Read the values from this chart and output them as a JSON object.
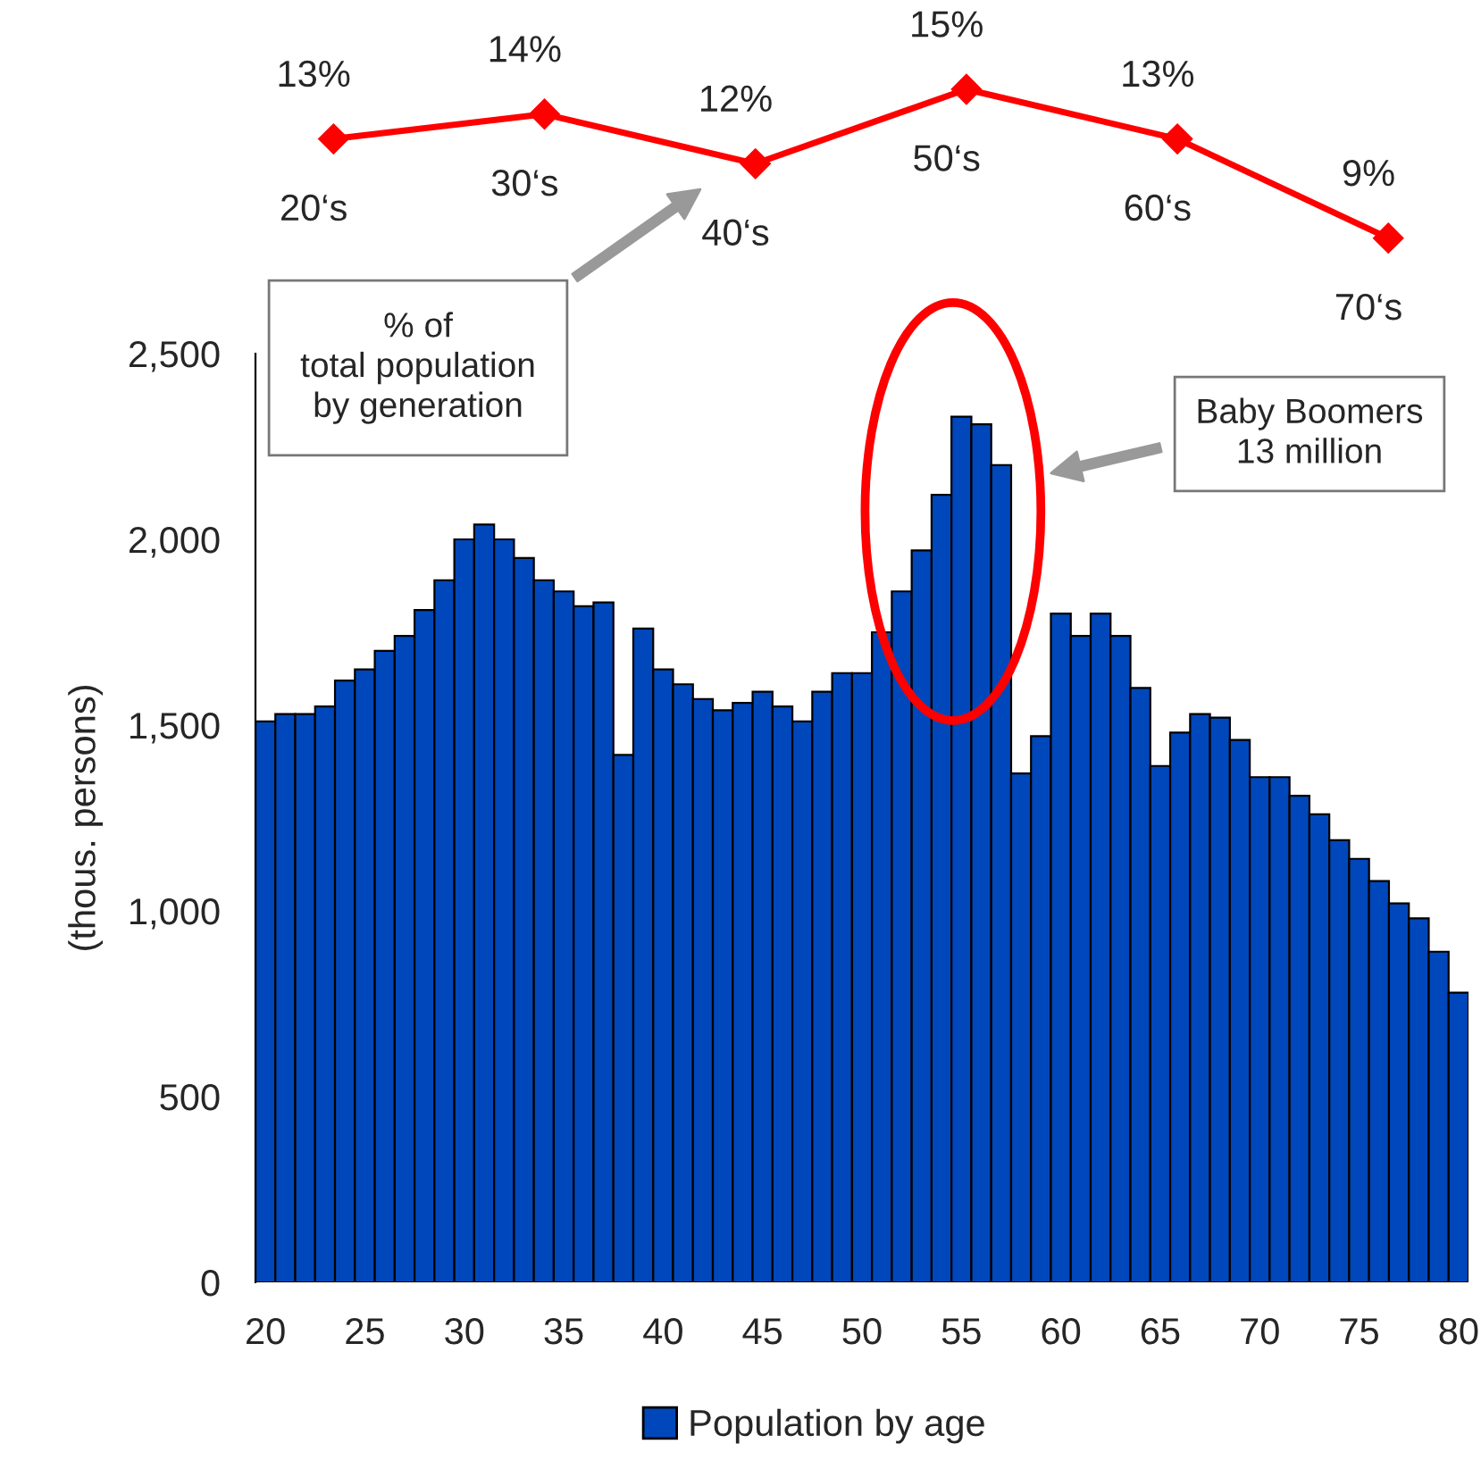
{
  "chart_data": [
    {
      "type": "line",
      "categories": [
        "20‘s",
        "30‘s",
        "40‘s",
        "50‘s",
        "60‘s",
        "70‘s"
      ],
      "series": [
        {
          "color": "#ff0000",
          "values": [
            13,
            14,
            12,
            15,
            13,
            9
          ],
          "value_labels": [
            "13%",
            "14%",
            "12%",
            "15%",
            "13%",
            "9%"
          ]
        }
      ],
      "marker": "diamond",
      "line_style": "solid",
      "tick_labels": false,
      "annotations": [
        "% of\ntotal population\nby generation"
      ]
    },
    {
      "type": "bar",
      "x": [
        20,
        21,
        22,
        23,
        24,
        25,
        26,
        27,
        28,
        29,
        30,
        31,
        32,
        33,
        34,
        35,
        36,
        37,
        38,
        39,
        40,
        41,
        42,
        43,
        44,
        45,
        46,
        47,
        48,
        49,
        50,
        51,
        52,
        53,
        54,
        55,
        56,
        57,
        58,
        59,
        60,
        61,
        62,
        63,
        64,
        65,
        66,
        67,
        68,
        69,
        70,
        71,
        72,
        73,
        74,
        75,
        76,
        77,
        78,
        79,
        80
      ],
      "series": [
        {
          "name": "Population by age",
          "color": "#0047bb",
          "values": [
            1510,
            1530,
            1530,
            1550,
            1620,
            1650,
            1700,
            1740,
            1810,
            1890,
            2000,
            2040,
            2000,
            1950,
            1890,
            1860,
            1820,
            1830,
            1420,
            1760,
            1650,
            1610,
            1570,
            1540,
            1560,
            1590,
            1550,
            1510,
            1590,
            1640,
            1640,
            1750,
            1860,
            1970,
            2120,
            2330,
            2310,
            2200,
            1370,
            1470,
            1800,
            1740,
            1800,
            1740,
            1600,
            1390,
            1480,
            1530,
            1520,
            1460,
            1360,
            1360,
            1310,
            1260,
            1190,
            1140,
            1080,
            1020,
            980,
            890,
            780
          ]
        }
      ],
      "xlim": [
        19.5,
        80.5
      ],
      "xticks": [
        20,
        25,
        30,
        35,
        40,
        45,
        50,
        55,
        60,
        65,
        70,
        75,
        80
      ],
      "ylim": [
        0,
        2500
      ],
      "yticks": [
        0,
        500,
        {
          "value": 1000,
          "label": "1,000"
        },
        {
          "value": 1500,
          "label": "1,500"
        },
        {
          "value": 2000,
          "label": "2,000"
        },
        {
          "value": 2500,
          "label": "2,500"
        }
      ],
      "ylabel": "(thous. persons)",
      "grid": false,
      "legend": "bottom",
      "annotations": [
        "Baby Boomers\n13 million"
      ]
    }
  ]
}
